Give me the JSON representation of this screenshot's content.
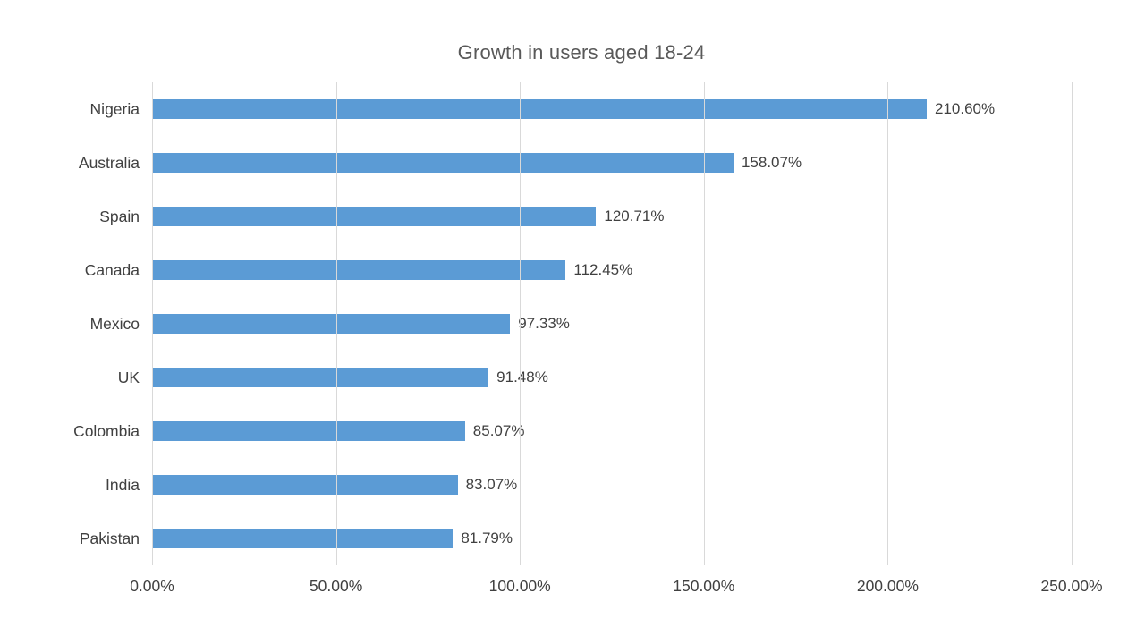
{
  "chart_data": {
    "type": "bar",
    "orientation": "horizontal",
    "title": "Growth in users aged 18-24",
    "categories": [
      "Nigeria",
      "Australia",
      "Spain",
      "Canada",
      "Mexico",
      "UK",
      "Colombia",
      "India",
      "Pakistan"
    ],
    "values": [
      210.6,
      158.07,
      120.71,
      112.45,
      97.33,
      91.48,
      85.07,
      83.07,
      81.79
    ],
    "data_labels": [
      "210.60%",
      "158.07%",
      "120.71%",
      "112.45%",
      "97.33%",
      "91.48%",
      "85.07%",
      "83.07%",
      "81.79%"
    ],
    "xlabel": "",
    "ylabel": "",
    "xlim": [
      0,
      250
    ],
    "x_ticks": [
      0,
      50,
      100,
      150,
      200,
      250
    ],
    "x_tick_labels": [
      "0.00%",
      "50.00%",
      "100.00%",
      "150.00%",
      "200.00%",
      "250.00%"
    ],
    "grid": true,
    "legend": false
  },
  "colors": {
    "bar": "#5b9bd5",
    "title_text": "#595959",
    "label_text": "#404040",
    "gridline": "#d9d9d9",
    "background": "#ffffff"
  }
}
